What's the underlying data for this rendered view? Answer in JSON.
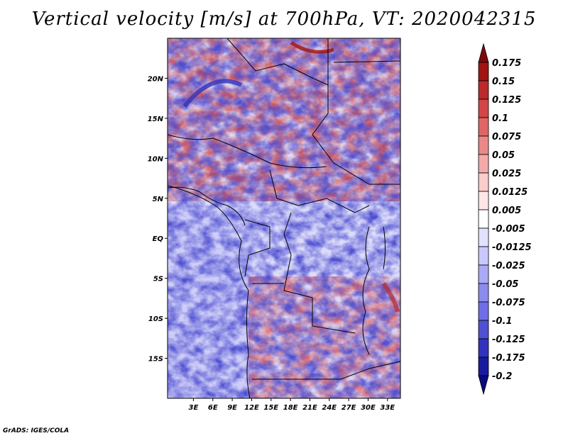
{
  "title": "Vertical velocity [m/s] at 700hPa, VT: 2020042315",
  "credit": "GrADS: IGES/COLA",
  "map": {
    "lon_range": [
      -1,
      35
    ],
    "lat_range": [
      -20,
      25
    ],
    "x_ticks": [
      "3E",
      "6E",
      "9E",
      "12E",
      "15E",
      "18E",
      "21E",
      "24E",
      "27E",
      "30E",
      "33E"
    ],
    "y_ticks": [
      "20N",
      "15N",
      "10N",
      "5N",
      "EQ",
      "5S",
      "10S",
      "15S"
    ]
  },
  "colorbar": {
    "labels": [
      "0.175",
      "0.15",
      "0.125",
      "0.1",
      "0.075",
      "0.05",
      "0.025",
      "0.0125",
      "0.005",
      "-0.005",
      "-0.0125",
      "-0.025",
      "-0.05",
      "-0.075",
      "-0.1",
      "-0.125",
      "-0.175",
      "-0.2"
    ],
    "colors": [
      "#7d0a0a",
      "#a01414",
      "#bc2a2a",
      "#d24646",
      "#e06666",
      "#ea8888",
      "#f4aaaa",
      "#fbcccc",
      "#ffe6e6",
      "#ffffff",
      "#e2e2ff",
      "#c8c8ff",
      "#aaaaf6",
      "#8c8cee",
      "#6e6ee6",
      "#5050d2",
      "#3232be",
      "#1a1aa0",
      "#0a0a80"
    ]
  }
}
